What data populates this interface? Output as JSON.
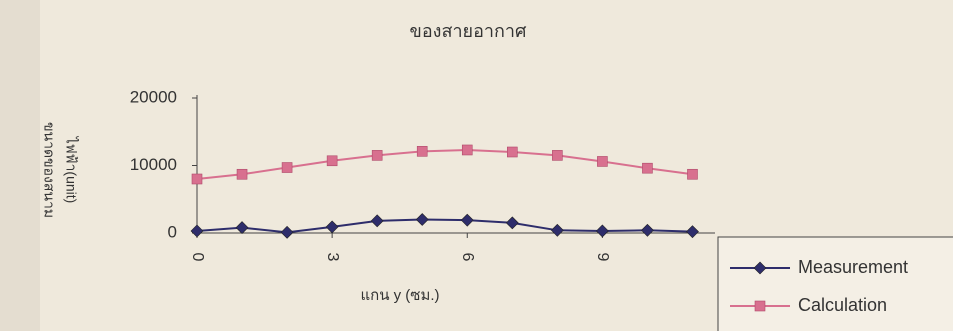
{
  "chart_data": {
    "type": "line",
    "title": "ของสายอากาศ",
    "x_label": "แกน y (ซม.)",
    "y_label": [
      "ขนาดของสนาม",
      "ไฟฟ้า(unit)"
    ],
    "x": [
      0,
      1,
      2,
      3,
      4,
      5,
      6,
      7,
      8,
      9,
      10,
      11
    ],
    "xlim": [
      0,
      11.5
    ],
    "xticks": [
      0,
      3,
      6,
      9
    ],
    "ylim": [
      0,
      20000
    ],
    "yticks": [
      0,
      10000,
      20000
    ],
    "series": [
      {
        "name": "Measurement",
        "color": "#2e2d6b",
        "marker": "diamond",
        "values": [
          300,
          800,
          100,
          900,
          1800,
          2000,
          1900,
          1500,
          400,
          300,
          400,
          200
        ]
      },
      {
        "name": "Calculation",
        "color": "#d8708f",
        "marker": "square",
        "values": [
          8000,
          8700,
          9700,
          10700,
          11500,
          12100,
          12300,
          12000,
          11500,
          10600,
          9600,
          8700
        ]
      }
    ]
  }
}
